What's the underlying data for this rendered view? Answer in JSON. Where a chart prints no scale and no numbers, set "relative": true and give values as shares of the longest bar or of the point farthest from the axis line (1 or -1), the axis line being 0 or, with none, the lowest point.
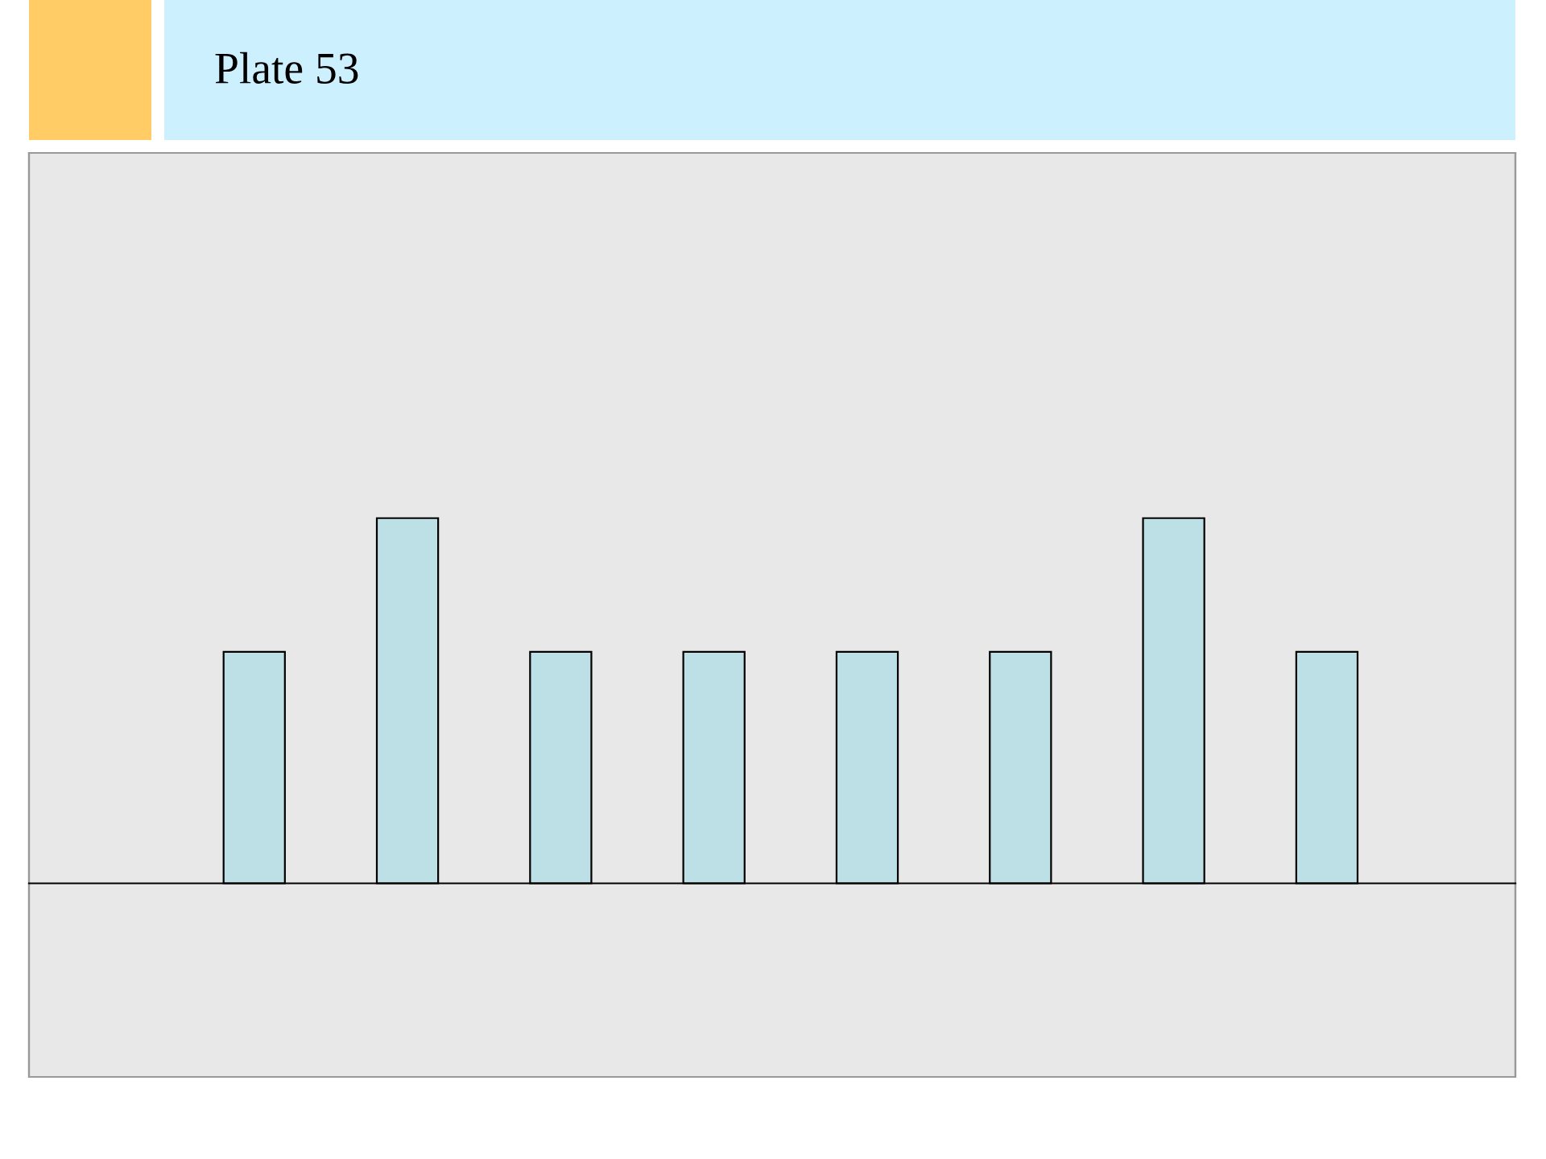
{
  "chart_data": {
    "type": "bar",
    "title": "Plate 53",
    "relative": true,
    "categories": [
      null,
      null,
      null,
      null,
      null,
      null,
      null,
      null
    ],
    "values": [
      0.634,
      1,
      0.634,
      0.634,
      0.634,
      0.634,
      1,
      0.634
    ],
    "color": "#bde0e6"
  }
}
